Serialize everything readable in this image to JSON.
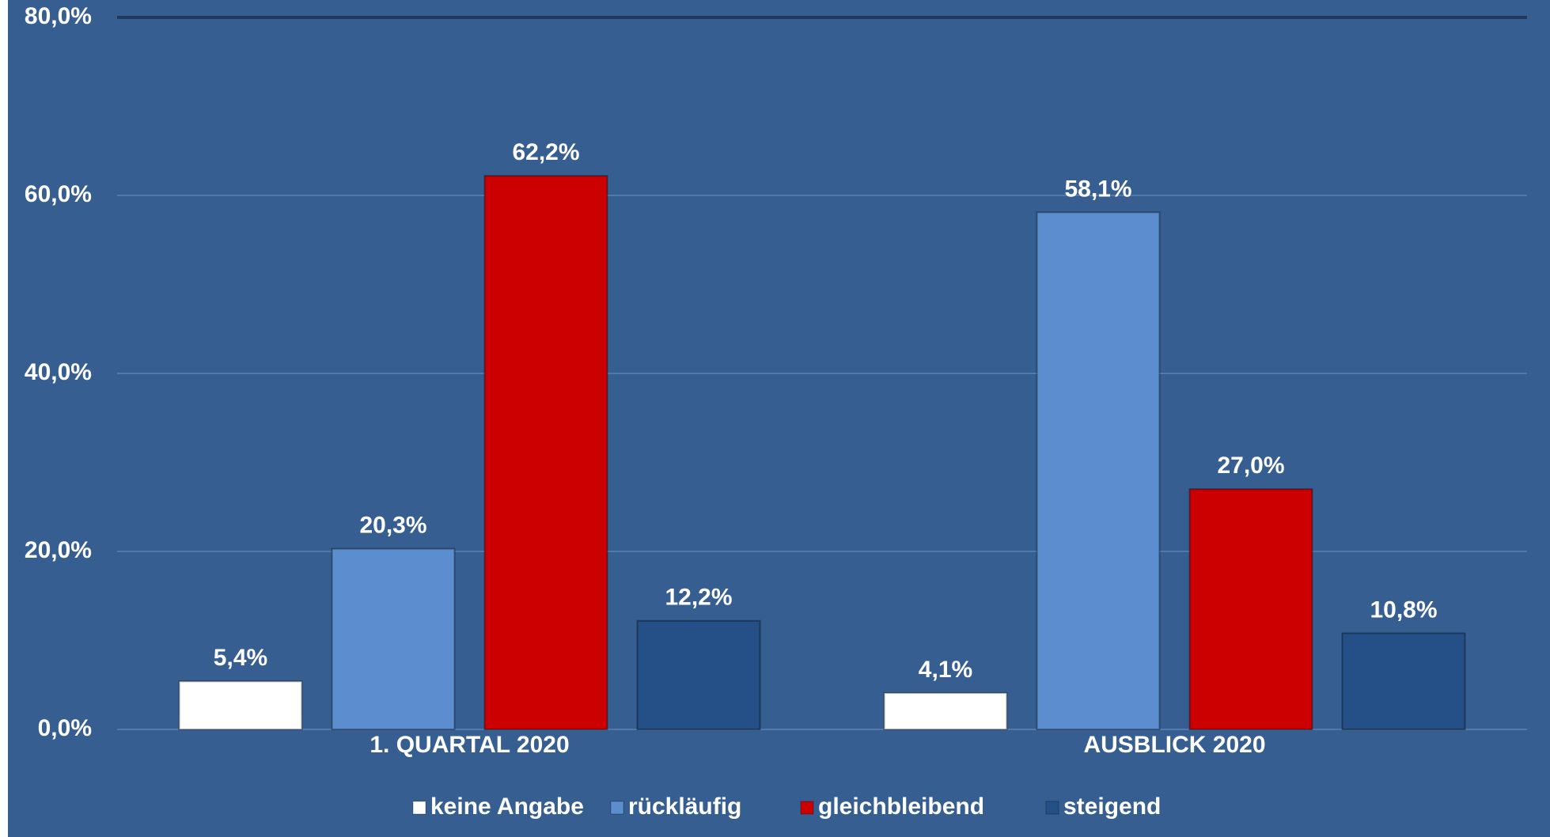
{
  "chart_data": {
    "type": "bar",
    "categories": [
      "1. QUARTAL 2020",
      "AUSBLICK 2020"
    ],
    "series": [
      {
        "name": "keine Angabe",
        "color": "#ffffff",
        "values": [
          5.4,
          4.1
        ],
        "value_labels": [
          "5,4%",
          "4,1%"
        ]
      },
      {
        "name": "rückläufig",
        "color": "#5b8dcf",
        "values": [
          20.3,
          58.1
        ],
        "value_labels": [
          "20,3%",
          "58,1%"
        ]
      },
      {
        "name": "gleichbleibend",
        "color": "#cc0000",
        "values": [
          62.2,
          27.0
        ],
        "value_labels": [
          "62,2%",
          "27,0%"
        ]
      },
      {
        "name": "steigend",
        "color": "#254f87",
        "values": [
          12.2,
          10.8
        ],
        "value_labels": [
          "12,2%",
          "10,8%"
        ]
      }
    ],
    "ylim": [
      0,
      80
    ],
    "yticks": [
      {
        "value": 0,
        "label": "0,0%"
      },
      {
        "value": 20,
        "label": "20,0%"
      },
      {
        "value": 40,
        "label": "40,0%"
      },
      {
        "value": 60,
        "label": "60,0%"
      },
      {
        "value": 80,
        "label": "80,0%"
      }
    ],
    "grid": true,
    "legend": "bottom"
  }
}
